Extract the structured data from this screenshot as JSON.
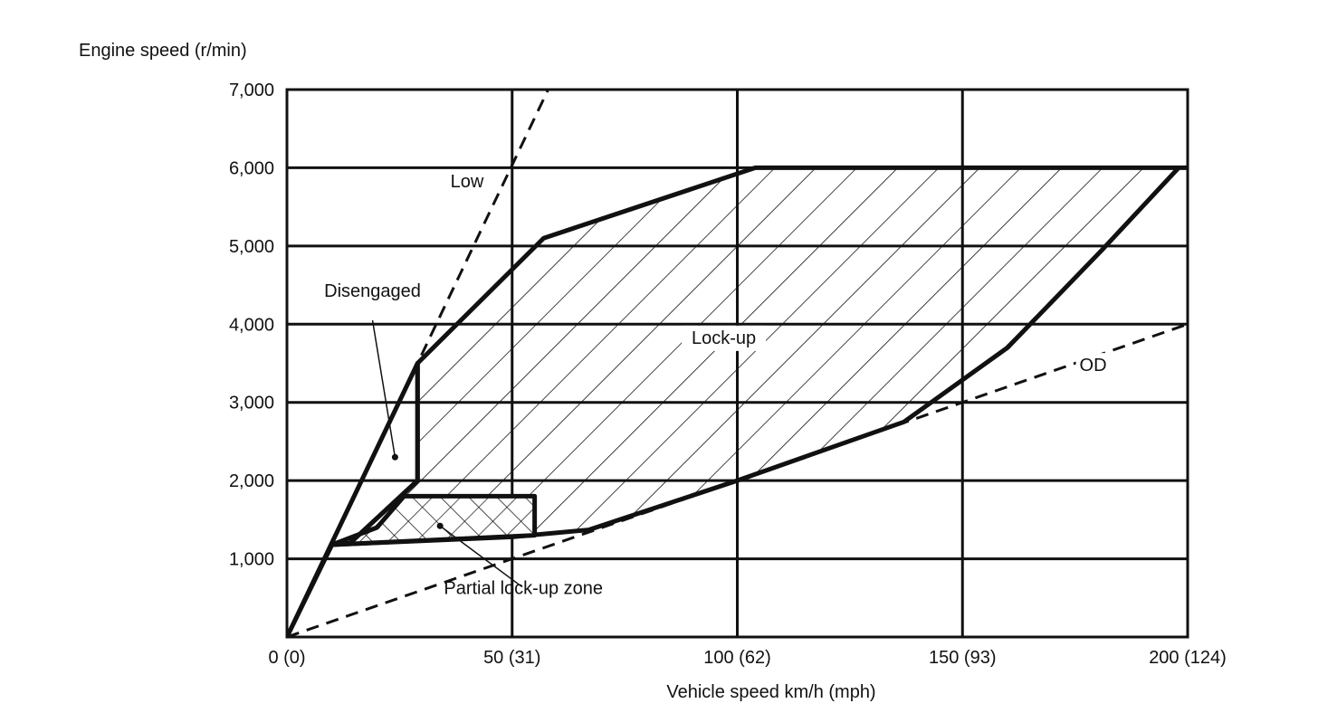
{
  "chart_data": {
    "type": "area",
    "title": "",
    "xlabel": "Vehicle speed  km/h (mph)",
    "ylabel": "Engine speed (r/min)",
    "xlim": [
      0,
      200
    ],
    "ylim": [
      0,
      7000
    ],
    "grid": true,
    "x_ticks": [
      {
        "value": 0,
        "label": "0 (0)"
      },
      {
        "value": 50,
        "label": "50 (31)"
      },
      {
        "value": 100,
        "label": "100 (62)"
      },
      {
        "value": 150,
        "label": "150 (93)"
      },
      {
        "value": 200,
        "label": "200 (124)"
      }
    ],
    "y_ticks": [
      {
        "value": 1000,
        "label": "1,000"
      },
      {
        "value": 2000,
        "label": "2,000"
      },
      {
        "value": 3000,
        "label": "3,000"
      },
      {
        "value": 4000,
        "label": "4,000"
      },
      {
        "value": 5000,
        "label": "5,000"
      },
      {
        "value": 6000,
        "label": "6,000"
      },
      {
        "value": 7000,
        "label": "7,000"
      }
    ],
    "lines": [
      {
        "name": "Low",
        "style": "dashed",
        "points": [
          [
            0,
            0
          ],
          [
            58,
            7000
          ]
        ]
      },
      {
        "name": "OD",
        "style": "dashed",
        "points": [
          [
            0,
            0
          ],
          [
            200,
            4000
          ]
        ]
      }
    ],
    "regions": [
      {
        "name": "Lock-up",
        "fill": "hatched",
        "points": [
          [
            29,
            3500
          ],
          [
            57,
            5100
          ],
          [
            104,
            6000
          ],
          [
            200,
            6000
          ],
          [
            198,
            6000
          ],
          [
            181,
            4950
          ],
          [
            160,
            3700
          ],
          [
            137,
            2750
          ],
          [
            100,
            2000
          ],
          [
            67,
            1370
          ],
          [
            50,
            1280
          ],
          [
            10,
            1180
          ],
          [
            14,
            1200
          ],
          [
            29,
            2000
          ]
        ]
      },
      {
        "name": "Partial lock-up zone",
        "fill": "crosshatched",
        "points": [
          [
            26,
            1800
          ],
          [
            55,
            1800
          ],
          [
            55,
            1300
          ],
          [
            10,
            1180
          ],
          [
            20,
            1400
          ]
        ]
      },
      {
        "name": "Disengaged",
        "fill": "none",
        "points": [
          [
            0,
            0
          ],
          [
            10,
            1180
          ],
          [
            14,
            1200
          ],
          [
            29,
            2000
          ],
          [
            29,
            3500
          ],
          [
            0,
            0
          ]
        ]
      }
    ],
    "annotations": [
      {
        "text": "Low",
        "x": 40,
        "y": 5750
      },
      {
        "text": "Disengaged",
        "x": 19,
        "y": 4350
      },
      {
        "text": "Lock-up",
        "x": 97,
        "y": 3750
      },
      {
        "text": "OD",
        "x": 179,
        "y": 3400
      },
      {
        "text": "Partial lock-up zone",
        "x": 52.5,
        "y": 550
      }
    ]
  }
}
